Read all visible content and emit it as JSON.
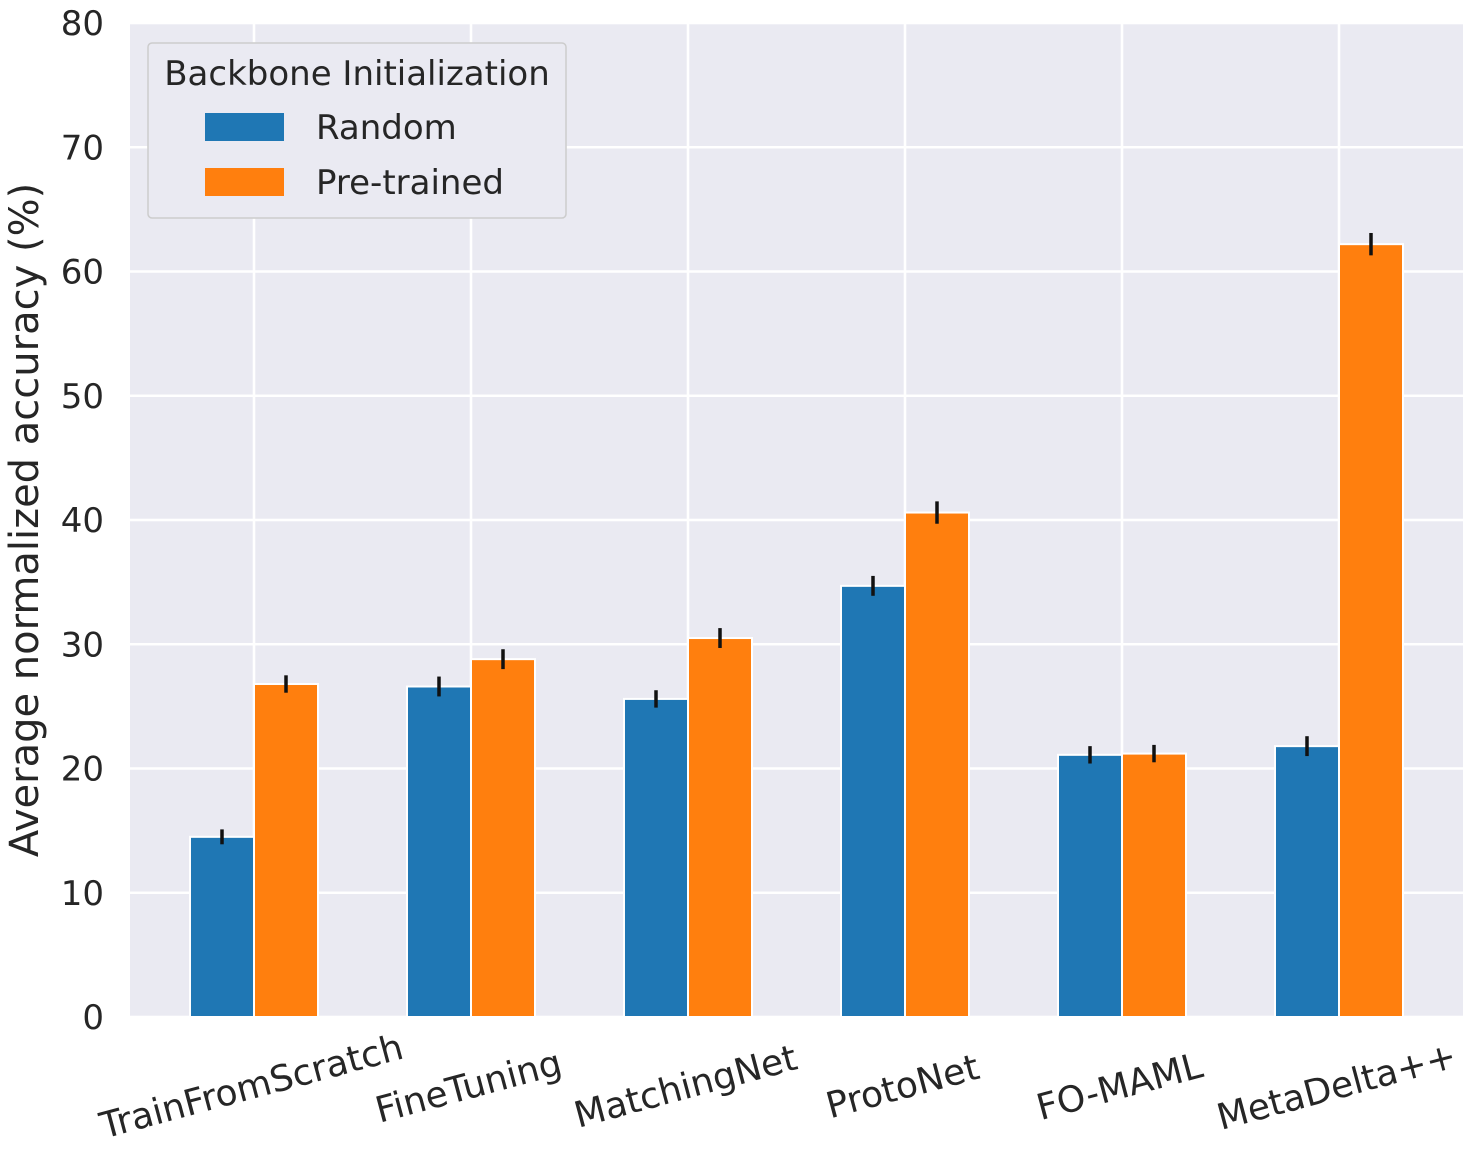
{
  "chart_data": {
    "type": "bar",
    "title": "",
    "xlabel": "",
    "ylabel": "Average normalized accuracy (%)",
    "ylim": [
      0,
      80
    ],
    "yticks": [
      0,
      10,
      20,
      30,
      40,
      50,
      60,
      70,
      80
    ],
    "grid": true,
    "legend": {
      "title": "Backbone Initialization",
      "placement": "top-left"
    },
    "categories": [
      "TrainFromScratch",
      "FineTuning",
      "MatchingNet",
      "ProtoNet",
      "FO-MAML",
      "MetaDelta++"
    ],
    "series": [
      {
        "name": "Random",
        "color": "#1f77b4",
        "values": [
          14.5,
          26.6,
          25.6,
          34.7,
          21.1,
          21.8
        ],
        "errors": [
          0.6,
          0.8,
          0.7,
          0.8,
          0.7,
          0.8
        ]
      },
      {
        "name": "Pre-trained",
        "color": "#ff7f0e",
        "values": [
          26.8,
          28.8,
          30.5,
          40.6,
          21.2,
          62.2
        ],
        "errors": [
          0.7,
          0.8,
          0.8,
          0.9,
          0.7,
          0.9
        ]
      }
    ]
  }
}
